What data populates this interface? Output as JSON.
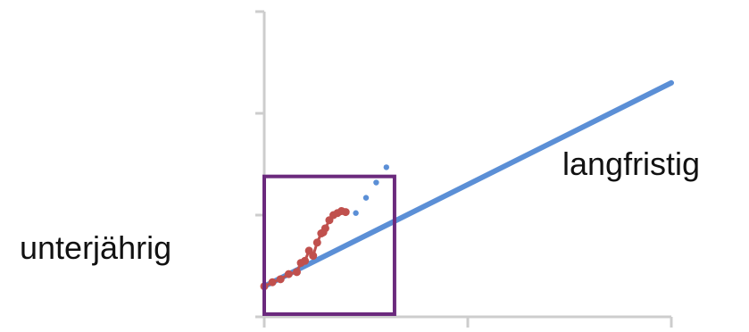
{
  "chart_data": {
    "type": "line",
    "title": "",
    "xlabel": "",
    "ylabel": "",
    "grid": false,
    "legend": "none",
    "xlim": [
      0,
      2
    ],
    "ylim": [
      0,
      3
    ],
    "x_ticks": [
      0,
      1,
      2
    ],
    "y_ticks": [
      0,
      1,
      2,
      3
    ],
    "series": [
      {
        "style": "solid",
        "color": "#5b8fd6",
        "x": [
          0,
          2
        ],
        "y": [
          0.3,
          2.3
        ]
      },
      {
        "style": "dotted",
        "color": "#5b8fd6",
        "x": [
          0.45,
          0.5,
          0.55,
          0.6
        ],
        "y": [
          1.02,
          1.17,
          1.32,
          1.47
        ]
      },
      {
        "style": "marker",
        "color": "#c0504d",
        "x": [
          0.0,
          0.04,
          0.08,
          0.12,
          0.16,
          0.18,
          0.2,
          0.22,
          0.24,
          0.26,
          0.28,
          0.29,
          0.3,
          0.32,
          0.34,
          0.36,
          0.38,
          0.4
        ],
        "y": [
          0.3,
          0.34,
          0.37,
          0.42,
          0.44,
          0.53,
          0.55,
          0.65,
          0.6,
          0.73,
          0.82,
          0.83,
          0.87,
          0.95,
          1.0,
          1.02,
          1.04,
          1.03
        ]
      }
    ],
    "annotations": [
      {
        "text": "langfristig"
      },
      {
        "text": "unterjährig"
      }
    ],
    "highlight_box": {
      "color": "#6b2a7d",
      "x_range": [
        0,
        0.64
      ],
      "y_range": [
        0,
        1.38
      ]
    }
  }
}
